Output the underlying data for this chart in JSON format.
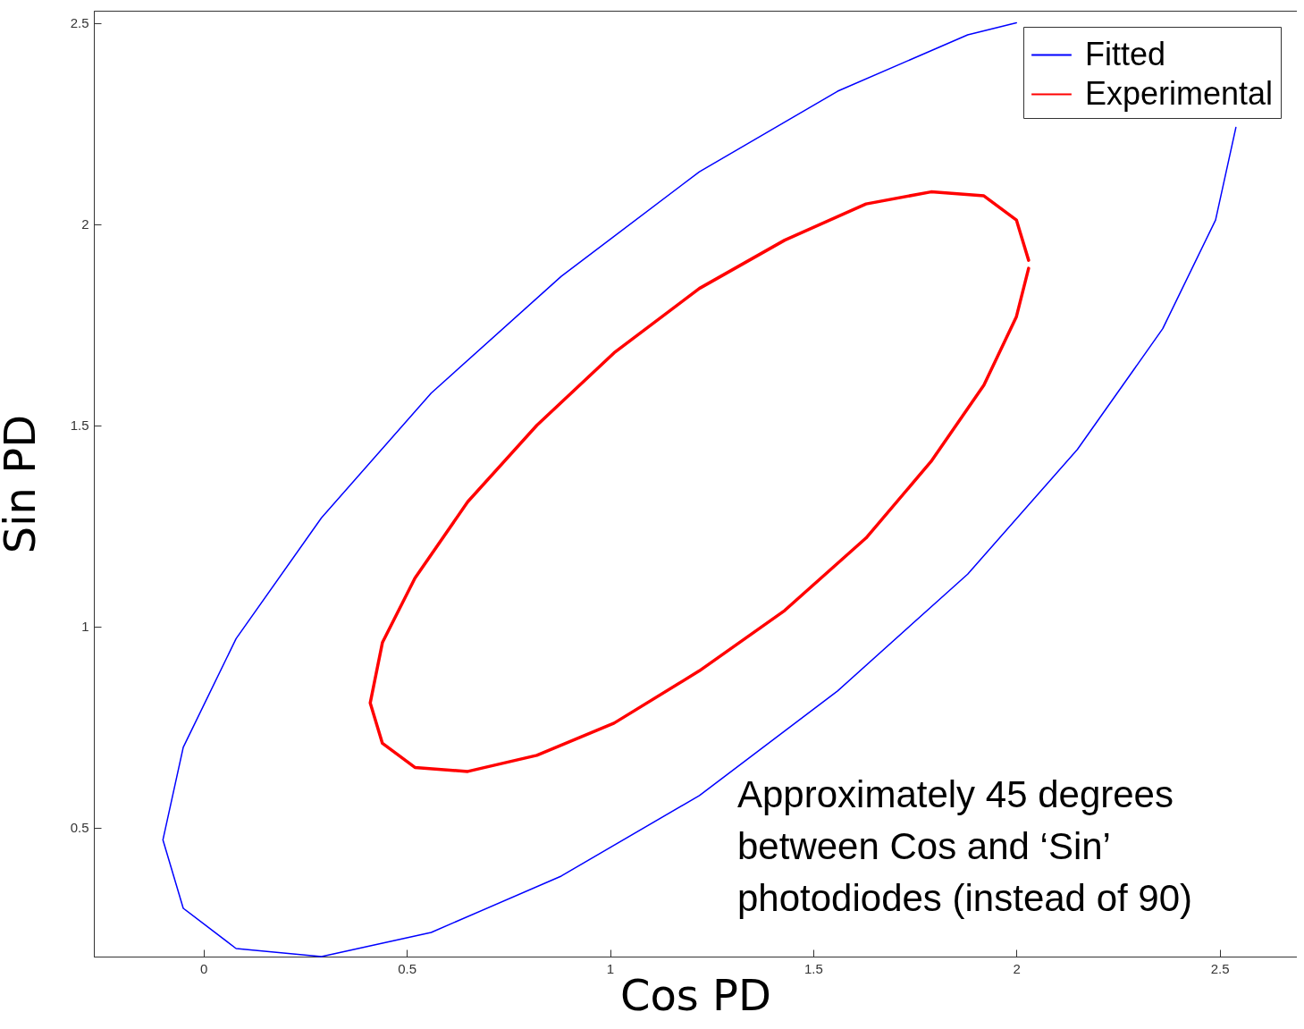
{
  "chart_data": {
    "type": "line",
    "xlabel": "Cos PD",
    "ylabel": "Sin PD",
    "xlim": [
      -0.27,
      2.69
    ],
    "ylim": [
      0.18,
      2.53
    ],
    "xticks": [
      0,
      0.5,
      1,
      1.5,
      2,
      2.5
    ],
    "yticks": [
      0.5,
      1,
      1.5,
      2,
      2.5
    ],
    "grid": false,
    "legend": "top right",
    "marker": "none",
    "line_style": "solid",
    "annotations": [
      "Approximately 45 degrees\nbetween Cos and ‘Sin’\nphotodiodes (instead of 90)"
    ],
    "series": [
      {
        "name": "Fitted",
        "color": "#0000ff",
        "x": [
          2.0,
          1.88,
          1.56,
          1.22,
          0.88,
          0.56,
          0.29,
          0.08,
          -0.05,
          -0.1,
          -0.05,
          0.08,
          0.29,
          0.56,
          0.88,
          1.22,
          1.56,
          1.88,
          2.15,
          2.36,
          2.49,
          2.54
        ],
        "values": [
          2.5,
          2.47,
          2.33,
          2.13,
          1.87,
          1.58,
          1.27,
          0.97,
          0.7,
          0.47,
          0.3,
          0.2,
          0.18,
          0.24,
          0.38,
          0.58,
          0.84,
          1.13,
          1.44,
          1.74,
          2.01,
          2.24
        ]
      },
      {
        "name": "Experimental",
        "color": "#ff0000",
        "x": [
          2.03,
          2.0,
          1.92,
          1.79,
          1.63,
          1.43,
          1.22,
          1.01,
          0.82,
          0.65,
          0.52,
          0.44,
          0.41,
          0.44,
          0.52,
          0.65,
          0.82,
          1.01,
          1.22,
          1.43,
          1.63,
          1.79,
          1.92,
          2.0,
          2.03
        ],
        "values": [
          1.91,
          2.01,
          2.07,
          2.08,
          2.05,
          1.96,
          1.84,
          1.68,
          1.5,
          1.31,
          1.12,
          0.96,
          0.81,
          0.71,
          0.65,
          0.64,
          0.68,
          0.76,
          0.89,
          1.04,
          1.22,
          1.41,
          1.6,
          1.77,
          1.89
        ]
      }
    ]
  }
}
